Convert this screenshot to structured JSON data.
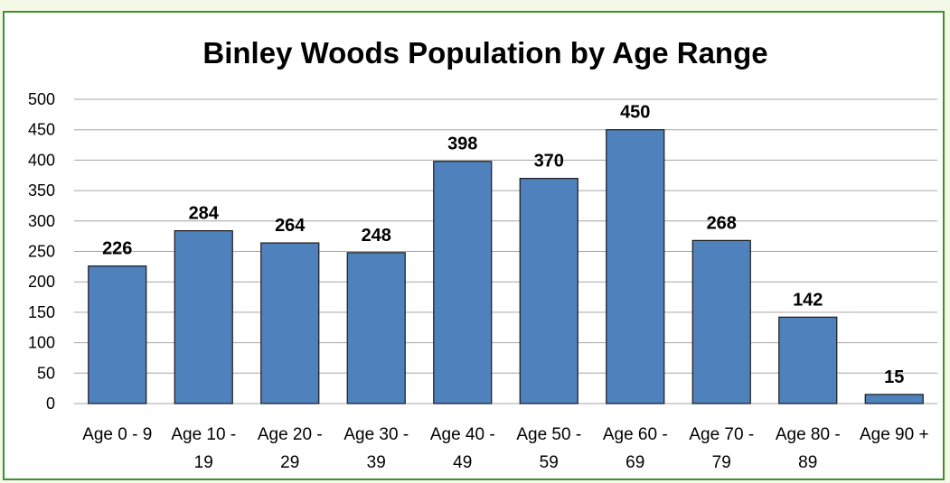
{
  "colors": {
    "bar": "#4f81bd",
    "frame": "#3f8f2e"
  },
  "chart_data": {
    "type": "bar",
    "title": "Binley Woods Population by Age Range",
    "xlabel": "",
    "ylabel": "",
    "ylim": [
      0,
      500
    ],
    "yticks": [
      "0",
      "50",
      "100",
      "150",
      "200",
      "250",
      "300",
      "350",
      "400",
      "450",
      "500"
    ],
    "grid": true,
    "legend": "none",
    "categories": [
      [
        "Age 0 - 9"
      ],
      [
        "Age 10 -",
        "19"
      ],
      [
        "Age 20 -",
        "29"
      ],
      [
        "Age 30 -",
        "39"
      ],
      [
        "Age 40 -",
        "49"
      ],
      [
        "Age 50 -",
        "59"
      ],
      [
        "Age 60 -",
        "69"
      ],
      [
        "Age 70 -",
        "79"
      ],
      [
        "Age 80 -",
        "89"
      ],
      [
        "Age 90 +"
      ]
    ],
    "values": [
      226,
      284,
      264,
      248,
      398,
      370,
      450,
      268,
      142,
      15
    ]
  }
}
